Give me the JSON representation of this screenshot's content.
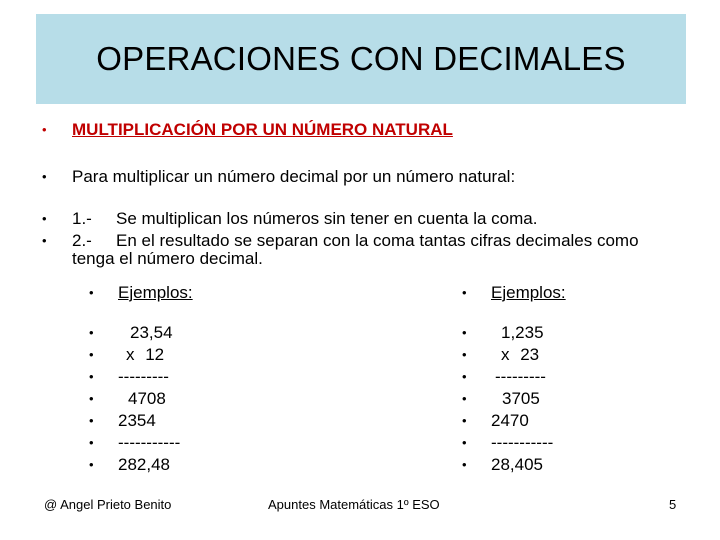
{
  "title": "OPERACIONES CON DECIMALES",
  "heading": "MULTIPLICACIÓN POR UN NÚMERO NATURAL",
  "intro": "Para multiplicar un número decimal por un número natural:",
  "steps": [
    {
      "num": "1.-",
      "text": "Se multiplican los números sin tener en cuenta la coma."
    },
    {
      "num": "2.-",
      "text": "En el resultado se separan con la coma tantas cifras decimales como"
    }
  ],
  "step2_cont": "tenga el número decimal.",
  "bullet_char": "•",
  "example_left": {
    "label": "Ejemplos:",
    "lines": [
      "23,54",
      "x 12",
      "---------",
      "4708",
      "2354",
      "-----------",
      "282,48"
    ]
  },
  "example_right": {
    "label": "Ejemplos:",
    "lines": [
      "1,235",
      "x 23",
      "---------",
      "3705",
      "2470",
      "-----------",
      "28,405"
    ]
  },
  "footer": {
    "author": "@ Angel Prieto Benito",
    "course": "Apuntes Matemáticas 1º ESO",
    "page": "5"
  }
}
